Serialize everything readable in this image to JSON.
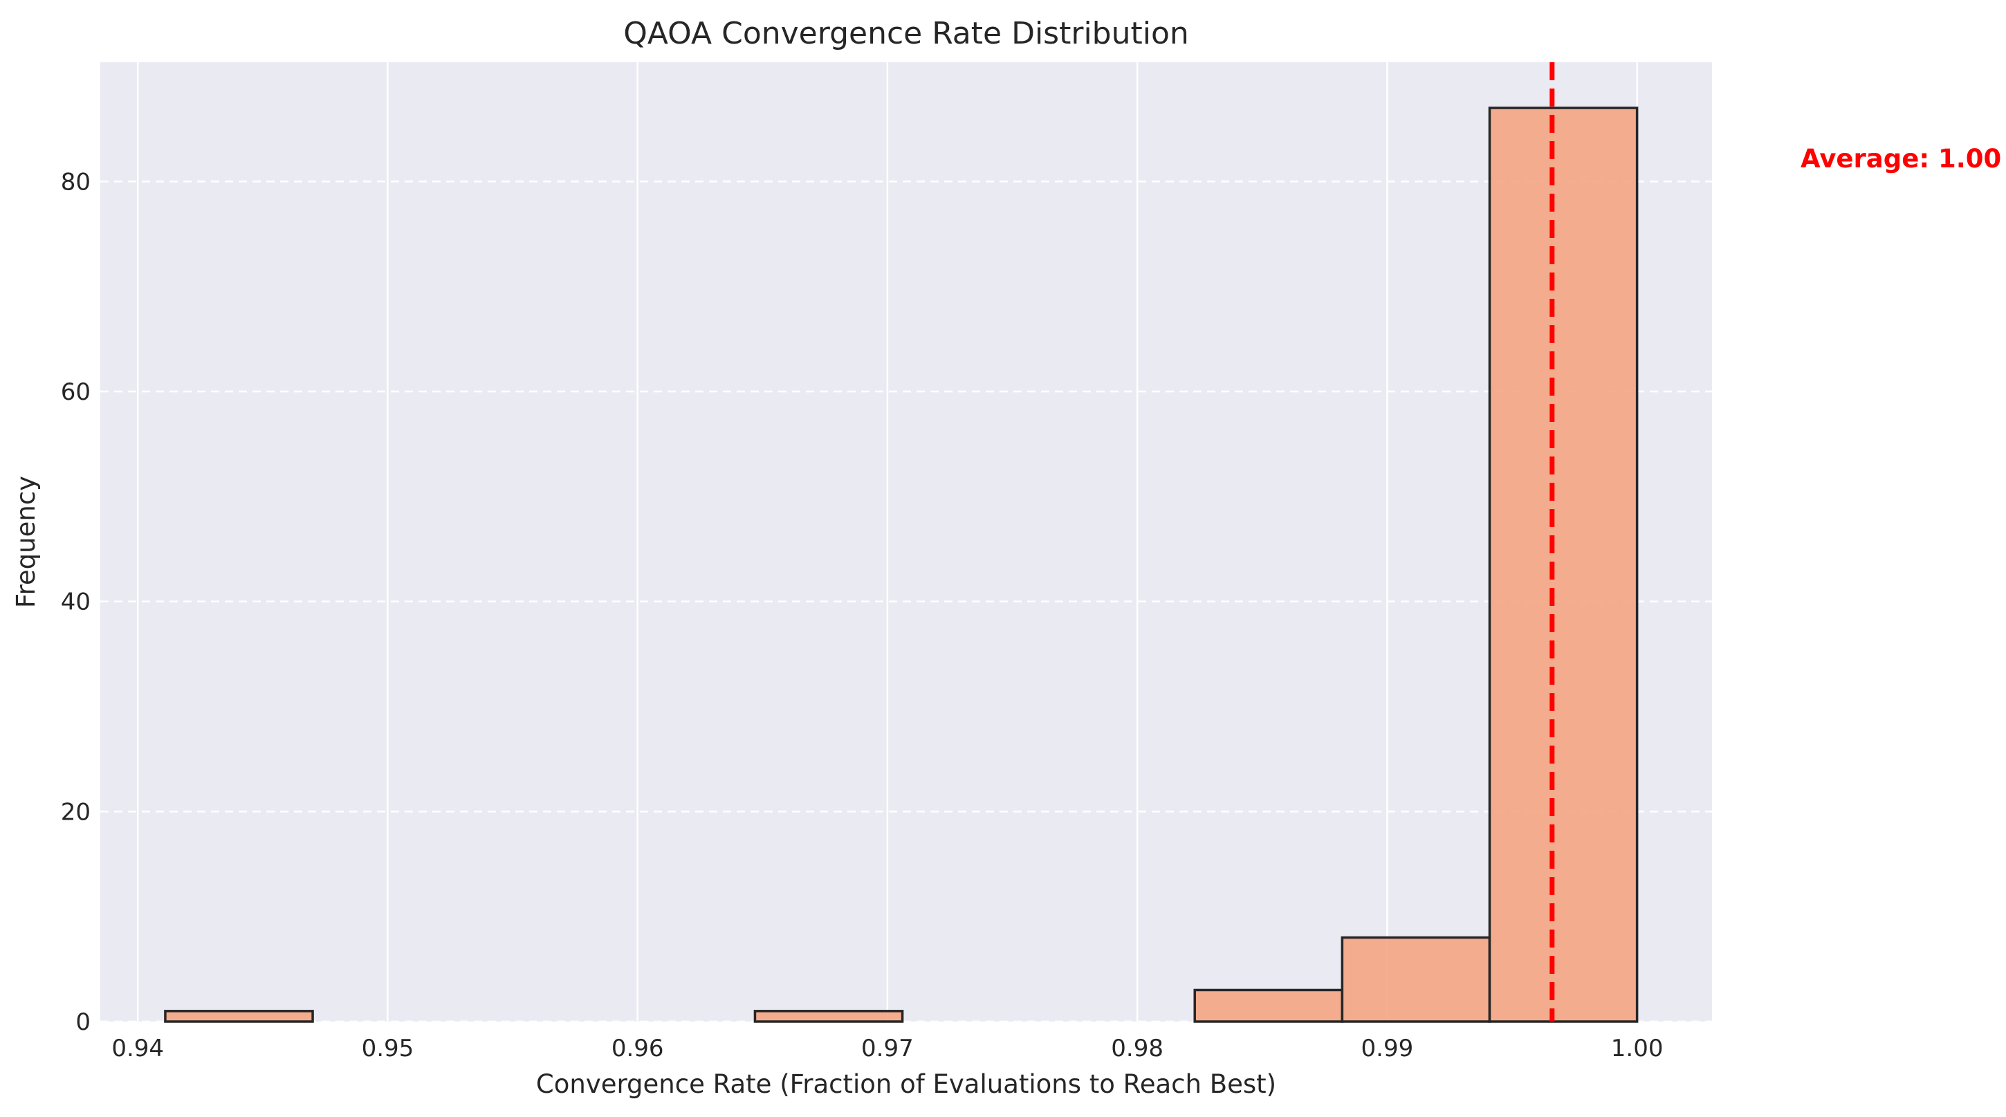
{
  "chart_data": {
    "type": "histogram",
    "title": "QAOA Convergence Rate Distribution",
    "xlabel": "Convergence Rate (Fraction of Evaluations to Reach Best)",
    "ylabel": "Frequency",
    "xlim": [
      0.9385,
      1.003
    ],
    "ylim": [
      0,
      91.35
    ],
    "xticks": [
      0.94,
      0.95,
      0.96,
      0.97,
      0.98,
      0.99,
      1.0
    ],
    "xtick_labels": [
      "0.94",
      "0.95",
      "0.96",
      "0.97",
      "0.98",
      "0.99",
      "1.00"
    ],
    "yticks": [
      0,
      20,
      40,
      60,
      80
    ],
    "ytick_labels": [
      "0",
      "20",
      "40",
      "60",
      "80"
    ],
    "bins": [
      {
        "start": 0.9411,
        "end": 0.947,
        "count": 1
      },
      {
        "start": 0.947,
        "end": 0.9529,
        "count": 0
      },
      {
        "start": 0.9529,
        "end": 0.9588,
        "count": 0
      },
      {
        "start": 0.9588,
        "end": 0.9647,
        "count": 0
      },
      {
        "start": 0.9647,
        "end": 0.9706,
        "count": 1
      },
      {
        "start": 0.9706,
        "end": 0.9765,
        "count": 0
      },
      {
        "start": 0.9765,
        "end": 0.9823,
        "count": 0
      },
      {
        "start": 0.9823,
        "end": 0.9882,
        "count": 3
      },
      {
        "start": 0.9882,
        "end": 0.9941,
        "count": 8
      },
      {
        "start": 0.9941,
        "end": 1.0,
        "count": 87
      }
    ],
    "bar_color": "#f4a582",
    "bar_edge_color": "#262626",
    "mean_line": {
      "x": 0.9966,
      "color": "#ff0000",
      "style": "dashed"
    },
    "annotation": {
      "text": "Average: 1.00",
      "color": "#ff0000"
    },
    "grid": true,
    "background": "#eaeaf2",
    "legend": "none"
  }
}
